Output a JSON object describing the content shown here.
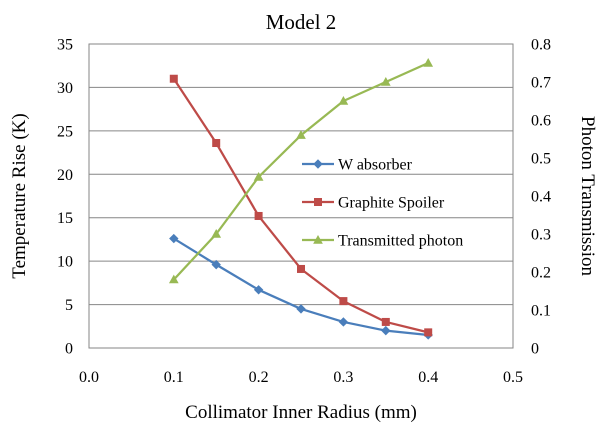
{
  "chart_data": {
    "type": "line",
    "title": "Model 2",
    "xlabel": "Collimator Inner Radius (mm)",
    "ylabel": "Temperature Rise (K)",
    "y2label": "Photon Transmission",
    "xlim": [
      0.0,
      0.5
    ],
    "ylim": [
      0,
      35
    ],
    "y2lim": [
      0,
      0.8
    ],
    "x_ticks": [
      "0.0",
      "0.1",
      "0.2",
      "0.3",
      "0.4",
      "0.5"
    ],
    "y_ticks": [
      "0",
      "5",
      "10",
      "15",
      "20",
      "25",
      "30",
      "35"
    ],
    "y2_ticks": [
      "0",
      "0.1",
      "0.2",
      "0.3",
      "0.4",
      "0.5",
      "0.6",
      "0.7",
      "0.8"
    ],
    "grid": true,
    "legend_position": "center-right",
    "series": [
      {
        "name": "W absorber",
        "axis": "left",
        "color": "#4a7ebb",
        "marker": "diamond",
        "x": [
          0.1,
          0.15,
          0.2,
          0.25,
          0.3,
          0.35,
          0.4
        ],
        "y": [
          12.6,
          9.6,
          6.7,
          4.5,
          3.0,
          2.0,
          1.5
        ]
      },
      {
        "name": "Graphite Spoiler",
        "axis": "left",
        "color": "#be4b48",
        "marker": "square",
        "x": [
          0.1,
          0.15,
          0.2,
          0.25,
          0.3,
          0.35,
          0.4
        ],
        "y": [
          31.0,
          23.6,
          15.2,
          9.1,
          5.4,
          3.0,
          1.8
        ]
      },
      {
        "name": "Transmitted photon",
        "axis": "right",
        "color": "#98b954",
        "marker": "triangle",
        "x": [
          0.1,
          0.15,
          0.2,
          0.25,
          0.3,
          0.35,
          0.4
        ],
        "y": [
          0.18,
          0.3,
          0.45,
          0.56,
          0.65,
          0.7,
          0.75
        ]
      }
    ]
  }
}
